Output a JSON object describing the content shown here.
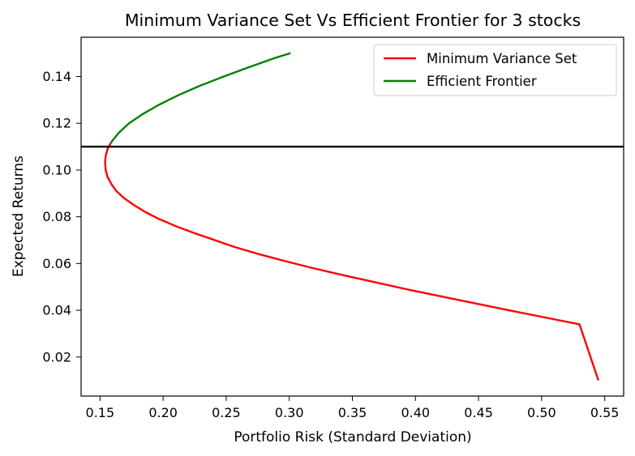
{
  "chart_data": {
    "type": "line",
    "title": "Minimum Variance Set Vs Efficient Frontier for 3 stocks",
    "xlabel": "Portfolio Risk (Standard Deviation)",
    "ylabel": "Expected Returns",
    "xlim": [
      0.135,
      0.565
    ],
    "ylim": [
      0.0033,
      0.1568
    ],
    "xticks": [
      0.15,
      0.2,
      0.25,
      0.3,
      0.35,
      0.4,
      0.45,
      0.5,
      0.55
    ],
    "xtick_labels": [
      "0.15",
      "0.20",
      "0.25",
      "0.30",
      "0.35",
      "0.40",
      "0.45",
      "0.50",
      "0.55"
    ],
    "yticks": [
      0.02,
      0.04,
      0.06,
      0.08,
      0.1,
      0.12,
      0.14
    ],
    "ytick_labels": [
      "0.02",
      "0.04",
      "0.06",
      "0.08",
      "0.10",
      "0.12",
      "0.14"
    ],
    "grid": false,
    "legend_position": "upper-right",
    "hline": {
      "y": 0.11,
      "color": "#000000"
    },
    "series": [
      {
        "name": "Minimum Variance Set",
        "color": "#ff0000",
        "points": [
          [
            0.159,
            0.112
          ],
          [
            0.156,
            0.109
          ],
          [
            0.1545,
            0.106
          ],
          [
            0.154,
            0.1035
          ],
          [
            0.1545,
            0.1
          ],
          [
            0.156,
            0.097
          ],
          [
            0.159,
            0.094
          ],
          [
            0.163,
            0.091
          ],
          [
            0.169,
            0.088
          ],
          [
            0.177,
            0.085
          ],
          [
            0.186,
            0.082
          ],
          [
            0.197,
            0.079
          ],
          [
            0.21,
            0.076
          ],
          [
            0.225,
            0.073
          ],
          [
            0.241,
            0.07
          ],
          [
            0.257,
            0.067
          ],
          [
            0.276,
            0.064
          ],
          [
            0.297,
            0.061
          ],
          [
            0.319,
            0.058
          ],
          [
            0.343,
            0.055
          ],
          [
            0.368,
            0.052
          ],
          [
            0.393,
            0.049
          ],
          [
            0.42,
            0.046
          ],
          [
            0.447,
            0.043
          ],
          [
            0.474,
            0.04
          ],
          [
            0.502,
            0.037
          ],
          [
            0.53,
            0.034
          ],
          [
            0.545,
            0.01
          ]
        ]
      },
      {
        "name": "Efficient Frontier",
        "color": "#008000",
        "points": [
          [
            0.159,
            0.112
          ],
          [
            0.165,
            0.116
          ],
          [
            0.173,
            0.12
          ],
          [
            0.184,
            0.124
          ],
          [
            0.197,
            0.128
          ],
          [
            0.212,
            0.132
          ],
          [
            0.229,
            0.136
          ],
          [
            0.248,
            0.14
          ],
          [
            0.268,
            0.144
          ],
          [
            0.289,
            0.148
          ],
          [
            0.301,
            0.15
          ]
        ]
      }
    ]
  }
}
